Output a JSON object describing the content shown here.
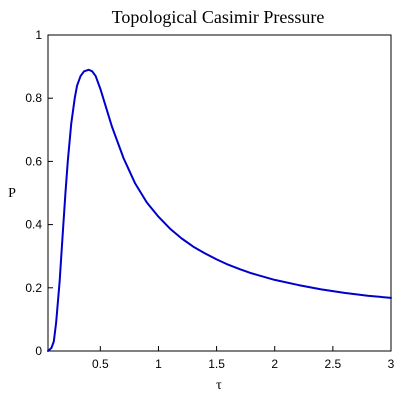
{
  "chart_data": {
    "type": "line",
    "title": "Topological Casimir Pressure",
    "xlabel": "τ",
    "ylabel": "P",
    "xlim": [
      0.05,
      3
    ],
    "ylim": [
      0,
      1
    ],
    "x_ticks": [
      0.5,
      1,
      1.5,
      2,
      2.5,
      3
    ],
    "x_tick_labels": [
      "0.5",
      "1",
      "1.5",
      "2",
      "2.5",
      "3"
    ],
    "y_ticks": [
      0,
      0.2,
      0.4,
      0.6,
      0.8,
      1
    ],
    "y_tick_labels": [
      "0",
      "0.2",
      "0.4",
      "0.6",
      "0.8",
      "1"
    ],
    "grid": false,
    "series": [
      {
        "color": "#0000CC",
        "x": [
          0.05,
          0.08,
          0.1,
          0.12,
          0.15,
          0.18,
          0.2,
          0.22,
          0.25,
          0.28,
          0.3,
          0.33,
          0.36,
          0.4,
          0.43,
          0.46,
          0.5,
          0.55,
          0.6,
          0.7,
          0.8,
          0.9,
          1.0,
          1.1,
          1.2,
          1.3,
          1.4,
          1.5,
          1.6,
          1.7,
          1.8,
          2.0,
          2.2,
          2.4,
          2.6,
          2.8,
          3.0
        ],
        "y": [
          0.0,
          0.01,
          0.03,
          0.09,
          0.22,
          0.39,
          0.5,
          0.6,
          0.72,
          0.8,
          0.84,
          0.87,
          0.885,
          0.89,
          0.885,
          0.87,
          0.83,
          0.77,
          0.71,
          0.61,
          0.53,
          0.47,
          0.425,
          0.387,
          0.356,
          0.33,
          0.309,
          0.29,
          0.273,
          0.259,
          0.246,
          0.225,
          0.209,
          0.195,
          0.184,
          0.175,
          0.168
        ]
      }
    ]
  }
}
